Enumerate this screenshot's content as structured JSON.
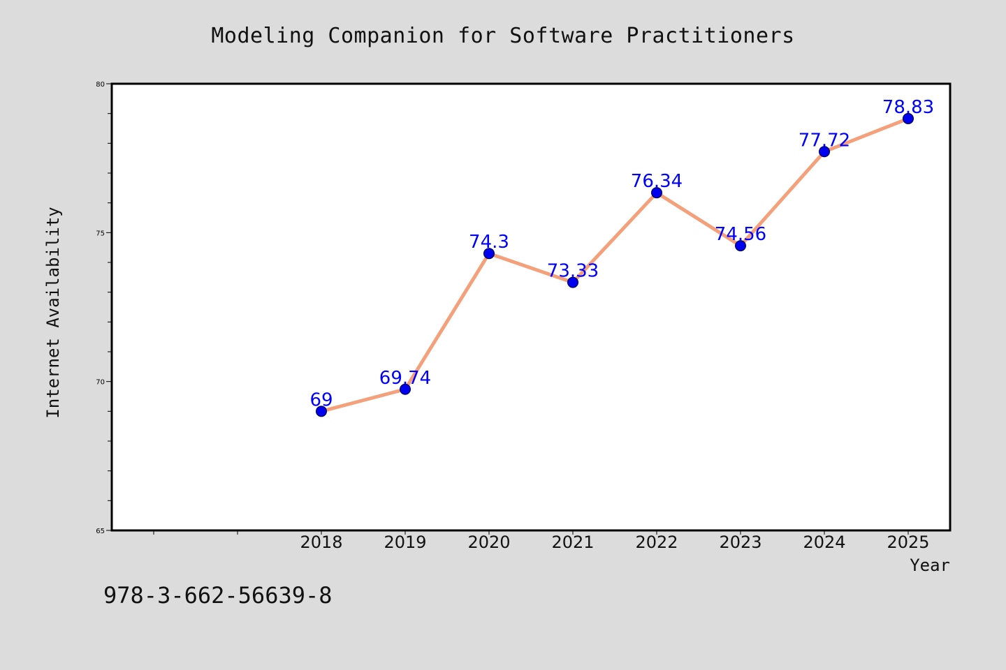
{
  "chart_data": {
    "type": "line",
    "title": "Modeling Companion for Software Practitioners",
    "xlabel": "Year",
    "ylabel": "Internet Availability",
    "categories": [
      "2018",
      "2019",
      "2020",
      "2021",
      "2022",
      "2023",
      "2024",
      "2025"
    ],
    "values": [
      69,
      69.74,
      74.3,
      73.33,
      76.34,
      74.56,
      77.72,
      78.83
    ],
    "data_labels": [
      "69",
      "69.74",
      "74.3",
      "73.33",
      "76.34",
      "74.56",
      "77.72",
      "78.83"
    ],
    "ylim": [
      65,
      80
    ],
    "y_ticks": [
      "65",
      "70",
      "75",
      "80"
    ],
    "y_tick_values": [
      65,
      70,
      75,
      80
    ],
    "grid": false,
    "colors": {
      "line": "#f4a07a",
      "marker": "#0000ee",
      "data_label": "#0000ff",
      "plot_background": "#ffffff",
      "page_background": "#dcdcdc"
    }
  },
  "footer_text": "978-3-662-56639-8"
}
